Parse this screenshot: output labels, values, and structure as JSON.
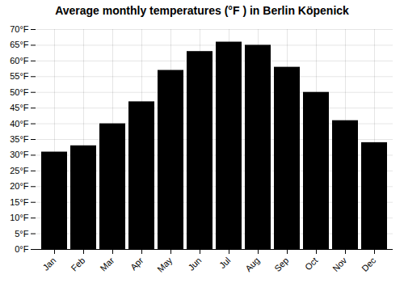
{
  "chart_data": {
    "type": "bar",
    "title": "Average monthly temperatures (°F ) in Berlin Köpenick",
    "categories": [
      "Jan",
      "Feb",
      "Mar",
      "Apr",
      "May",
      "Jun",
      "Jul",
      "Aug",
      "Sep",
      "Oct",
      "Nov",
      "Dec"
    ],
    "values": [
      31,
      33,
      40,
      47,
      57,
      63,
      66,
      65,
      58,
      50,
      41,
      34
    ],
    "ylim": [
      0,
      70
    ],
    "yticks": [
      {
        "value": 0,
        "label": "0°F"
      },
      {
        "value": 5,
        "label": "5°F"
      },
      {
        "value": 10,
        "label": "10°F"
      },
      {
        "value": 15,
        "label": "15°F"
      },
      {
        "value": 20,
        "label": "20°F"
      },
      {
        "value": 25,
        "label": "25°F"
      },
      {
        "value": 30,
        "label": "30°F"
      },
      {
        "value": 35,
        "label": "35°F"
      },
      {
        "value": 40,
        "label": "40°F"
      },
      {
        "value": 45,
        "label": "45°F"
      },
      {
        "value": 50,
        "label": "50°F"
      },
      {
        "value": 55,
        "label": "55°F"
      },
      {
        "value": 60,
        "label": "60°F"
      },
      {
        "value": 65,
        "label": "65°F"
      },
      {
        "value": 70,
        "label": "70°F"
      }
    ],
    "grid": true
  }
}
